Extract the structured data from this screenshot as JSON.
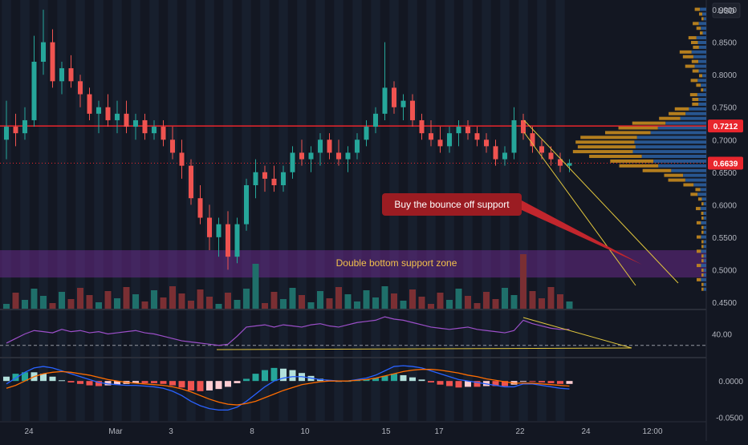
{
  "header": {
    "currency": "USD"
  },
  "chart_data": [
    {
      "type": "candlestick",
      "panel": "price",
      "y_axis_ticks": [
        "0.9000",
        "0.8500",
        "0.8000",
        "0.7500",
        "0.7000",
        "0.6500",
        "0.6000",
        "0.5500",
        "0.5000",
        "0.4500"
      ],
      "ylim": [
        0.44,
        0.915
      ],
      "last_price": "0.6639",
      "resistance_price": "0.7212",
      "annotation_callout": "Buy the bounce off support",
      "support_zone_label": "Double bottom support zone",
      "support_zone_range": [
        0.488,
        0.53
      ],
      "resistance_level": 0.7212,
      "candles": [
        [
          0.7,
          0.76,
          0.67,
          0.72
        ],
        [
          0.72,
          0.74,
          0.69,
          0.71
        ],
        [
          0.71,
          0.75,
          0.7,
          0.73
        ],
        [
          0.73,
          0.86,
          0.72,
          0.82
        ],
        [
          0.82,
          0.9,
          0.8,
          0.85
        ],
        [
          0.85,
          0.87,
          0.78,
          0.79
        ],
        [
          0.79,
          0.82,
          0.77,
          0.81
        ],
        [
          0.81,
          0.83,
          0.78,
          0.79
        ],
        [
          0.79,
          0.8,
          0.75,
          0.77
        ],
        [
          0.77,
          0.78,
          0.73,
          0.74
        ],
        [
          0.74,
          0.76,
          0.71,
          0.75
        ],
        [
          0.75,
          0.77,
          0.72,
          0.73
        ],
        [
          0.73,
          0.76,
          0.71,
          0.74
        ],
        [
          0.74,
          0.76,
          0.71,
          0.72
        ],
        [
          0.72,
          0.74,
          0.7,
          0.73
        ],
        [
          0.73,
          0.74,
          0.7,
          0.71
        ],
        [
          0.71,
          0.73,
          0.7,
          0.72
        ],
        [
          0.72,
          0.73,
          0.69,
          0.7
        ],
        [
          0.7,
          0.72,
          0.67,
          0.68
        ],
        [
          0.68,
          0.7,
          0.64,
          0.66
        ],
        [
          0.66,
          0.67,
          0.6,
          0.61
        ],
        [
          0.61,
          0.63,
          0.57,
          0.58
        ],
        [
          0.58,
          0.6,
          0.53,
          0.55
        ],
        [
          0.55,
          0.58,
          0.52,
          0.57
        ],
        [
          0.57,
          0.59,
          0.5,
          0.52
        ],
        [
          0.52,
          0.58,
          0.51,
          0.57
        ],
        [
          0.57,
          0.64,
          0.56,
          0.63
        ],
        [
          0.63,
          0.67,
          0.61,
          0.65
        ],
        [
          0.65,
          0.66,
          0.62,
          0.64
        ],
        [
          0.64,
          0.66,
          0.62,
          0.63
        ],
        [
          0.63,
          0.66,
          0.62,
          0.65
        ],
        [
          0.65,
          0.69,
          0.64,
          0.68
        ],
        [
          0.68,
          0.7,
          0.66,
          0.67
        ],
        [
          0.67,
          0.69,
          0.65,
          0.68
        ],
        [
          0.68,
          0.71,
          0.66,
          0.7
        ],
        [
          0.7,
          0.71,
          0.67,
          0.68
        ],
        [
          0.68,
          0.7,
          0.66,
          0.67
        ],
        [
          0.67,
          0.69,
          0.65,
          0.68
        ],
        [
          0.68,
          0.71,
          0.67,
          0.7
        ],
        [
          0.7,
          0.73,
          0.69,
          0.72
        ],
        [
          0.72,
          0.75,
          0.71,
          0.74
        ],
        [
          0.74,
          0.85,
          0.73,
          0.78
        ],
        [
          0.78,
          0.79,
          0.74,
          0.75
        ],
        [
          0.75,
          0.77,
          0.73,
          0.76
        ],
        [
          0.76,
          0.77,
          0.72,
          0.73
        ],
        [
          0.73,
          0.74,
          0.7,
          0.71
        ],
        [
          0.71,
          0.73,
          0.69,
          0.7
        ],
        [
          0.7,
          0.72,
          0.68,
          0.69
        ],
        [
          0.69,
          0.72,
          0.68,
          0.71
        ],
        [
          0.71,
          0.73,
          0.69,
          0.72
        ],
        [
          0.72,
          0.73,
          0.7,
          0.71
        ],
        [
          0.71,
          0.72,
          0.69,
          0.7
        ],
        [
          0.7,
          0.71,
          0.68,
          0.69
        ],
        [
          0.69,
          0.7,
          0.66,
          0.67
        ],
        [
          0.67,
          0.69,
          0.66,
          0.68
        ],
        [
          0.68,
          0.75,
          0.67,
          0.73
        ],
        [
          0.73,
          0.74,
          0.7,
          0.71
        ],
        [
          0.71,
          0.72,
          0.68,
          0.69
        ],
        [
          0.69,
          0.7,
          0.67,
          0.68
        ],
        [
          0.68,
          0.69,
          0.66,
          0.67
        ],
        [
          0.67,
          0.68,
          0.65,
          0.66
        ],
        [
          0.66,
          0.67,
          0.65,
          0.664
        ]
      ]
    },
    {
      "type": "line",
      "panel": "rsi",
      "y_axis_ticks": [
        "40.00"
      ],
      "ylim": [
        20,
        60
      ],
      "dashed_level": 30,
      "values": [
        32,
        36,
        40,
        43,
        42,
        41,
        44,
        42,
        43,
        41,
        42,
        40,
        41,
        42,
        43,
        41,
        40,
        38,
        36,
        34,
        33,
        32,
        31,
        30,
        31,
        38,
        46,
        47,
        48,
        46,
        48,
        47,
        46,
        48,
        49,
        47,
        46,
        48,
        50,
        51,
        52,
        55,
        53,
        52,
        50,
        48,
        46,
        45,
        44,
        45,
        46,
        44,
        43,
        42,
        41,
        43,
        52,
        49,
        47,
        45,
        44,
        44
      ]
    },
    {
      "type": "histogram+line",
      "panel": "macd",
      "y_axis_ticks": [
        "0.0000",
        "-0.0500"
      ],
      "ylim": [
        -0.055,
        0.03
      ],
      "macd": [
        -0.004,
        0.004,
        0.012,
        0.018,
        0.02,
        0.018,
        0.014,
        0.01,
        0.006,
        0.002,
        -0.002,
        -0.004,
        -0.005,
        -0.006,
        -0.006,
        -0.007,
        -0.008,
        -0.01,
        -0.014,
        -0.02,
        -0.028,
        -0.034,
        -0.038,
        -0.04,
        -0.04,
        -0.036,
        -0.028,
        -0.018,
        -0.008,
        0.0,
        0.004,
        0.006,
        0.006,
        0.004,
        0.002,
        0.001,
        0.0,
        0.0,
        0.002,
        0.004,
        0.008,
        0.014,
        0.02,
        0.021,
        0.02,
        0.018,
        0.014,
        0.01,
        0.006,
        0.002,
        0.0,
        -0.002,
        -0.004,
        -0.006,
        -0.008,
        -0.008,
        -0.004,
        -0.004,
        -0.006,
        -0.008,
        -0.01,
        -0.011
      ],
      "signal": [
        -0.01,
        -0.006,
        0.0,
        0.006,
        0.01,
        0.012,
        0.013,
        0.012,
        0.01,
        0.008,
        0.005,
        0.002,
        0.0,
        -0.002,
        -0.003,
        -0.004,
        -0.005,
        -0.006,
        -0.008,
        -0.011,
        -0.015,
        -0.02,
        -0.025,
        -0.029,
        -0.032,
        -0.033,
        -0.031,
        -0.028,
        -0.023,
        -0.018,
        -0.013,
        -0.009,
        -0.005,
        -0.003,
        -0.001,
        0.0,
        0.0,
        0.0,
        0.001,
        0.002,
        0.004,
        0.007,
        0.01,
        0.013,
        0.015,
        0.016,
        0.016,
        0.015,
        0.013,
        0.011,
        0.008,
        0.006,
        0.003,
        0.001,
        -0.001,
        -0.003,
        -0.003,
        -0.003,
        -0.004,
        -0.005,
        -0.006,
        -0.007
      ]
    }
  ],
  "x_axis": {
    "labels": [
      "24",
      "Mar",
      "3",
      "8",
      "10",
      "15",
      "17",
      "22",
      "24",
      "12:00"
    ]
  }
}
